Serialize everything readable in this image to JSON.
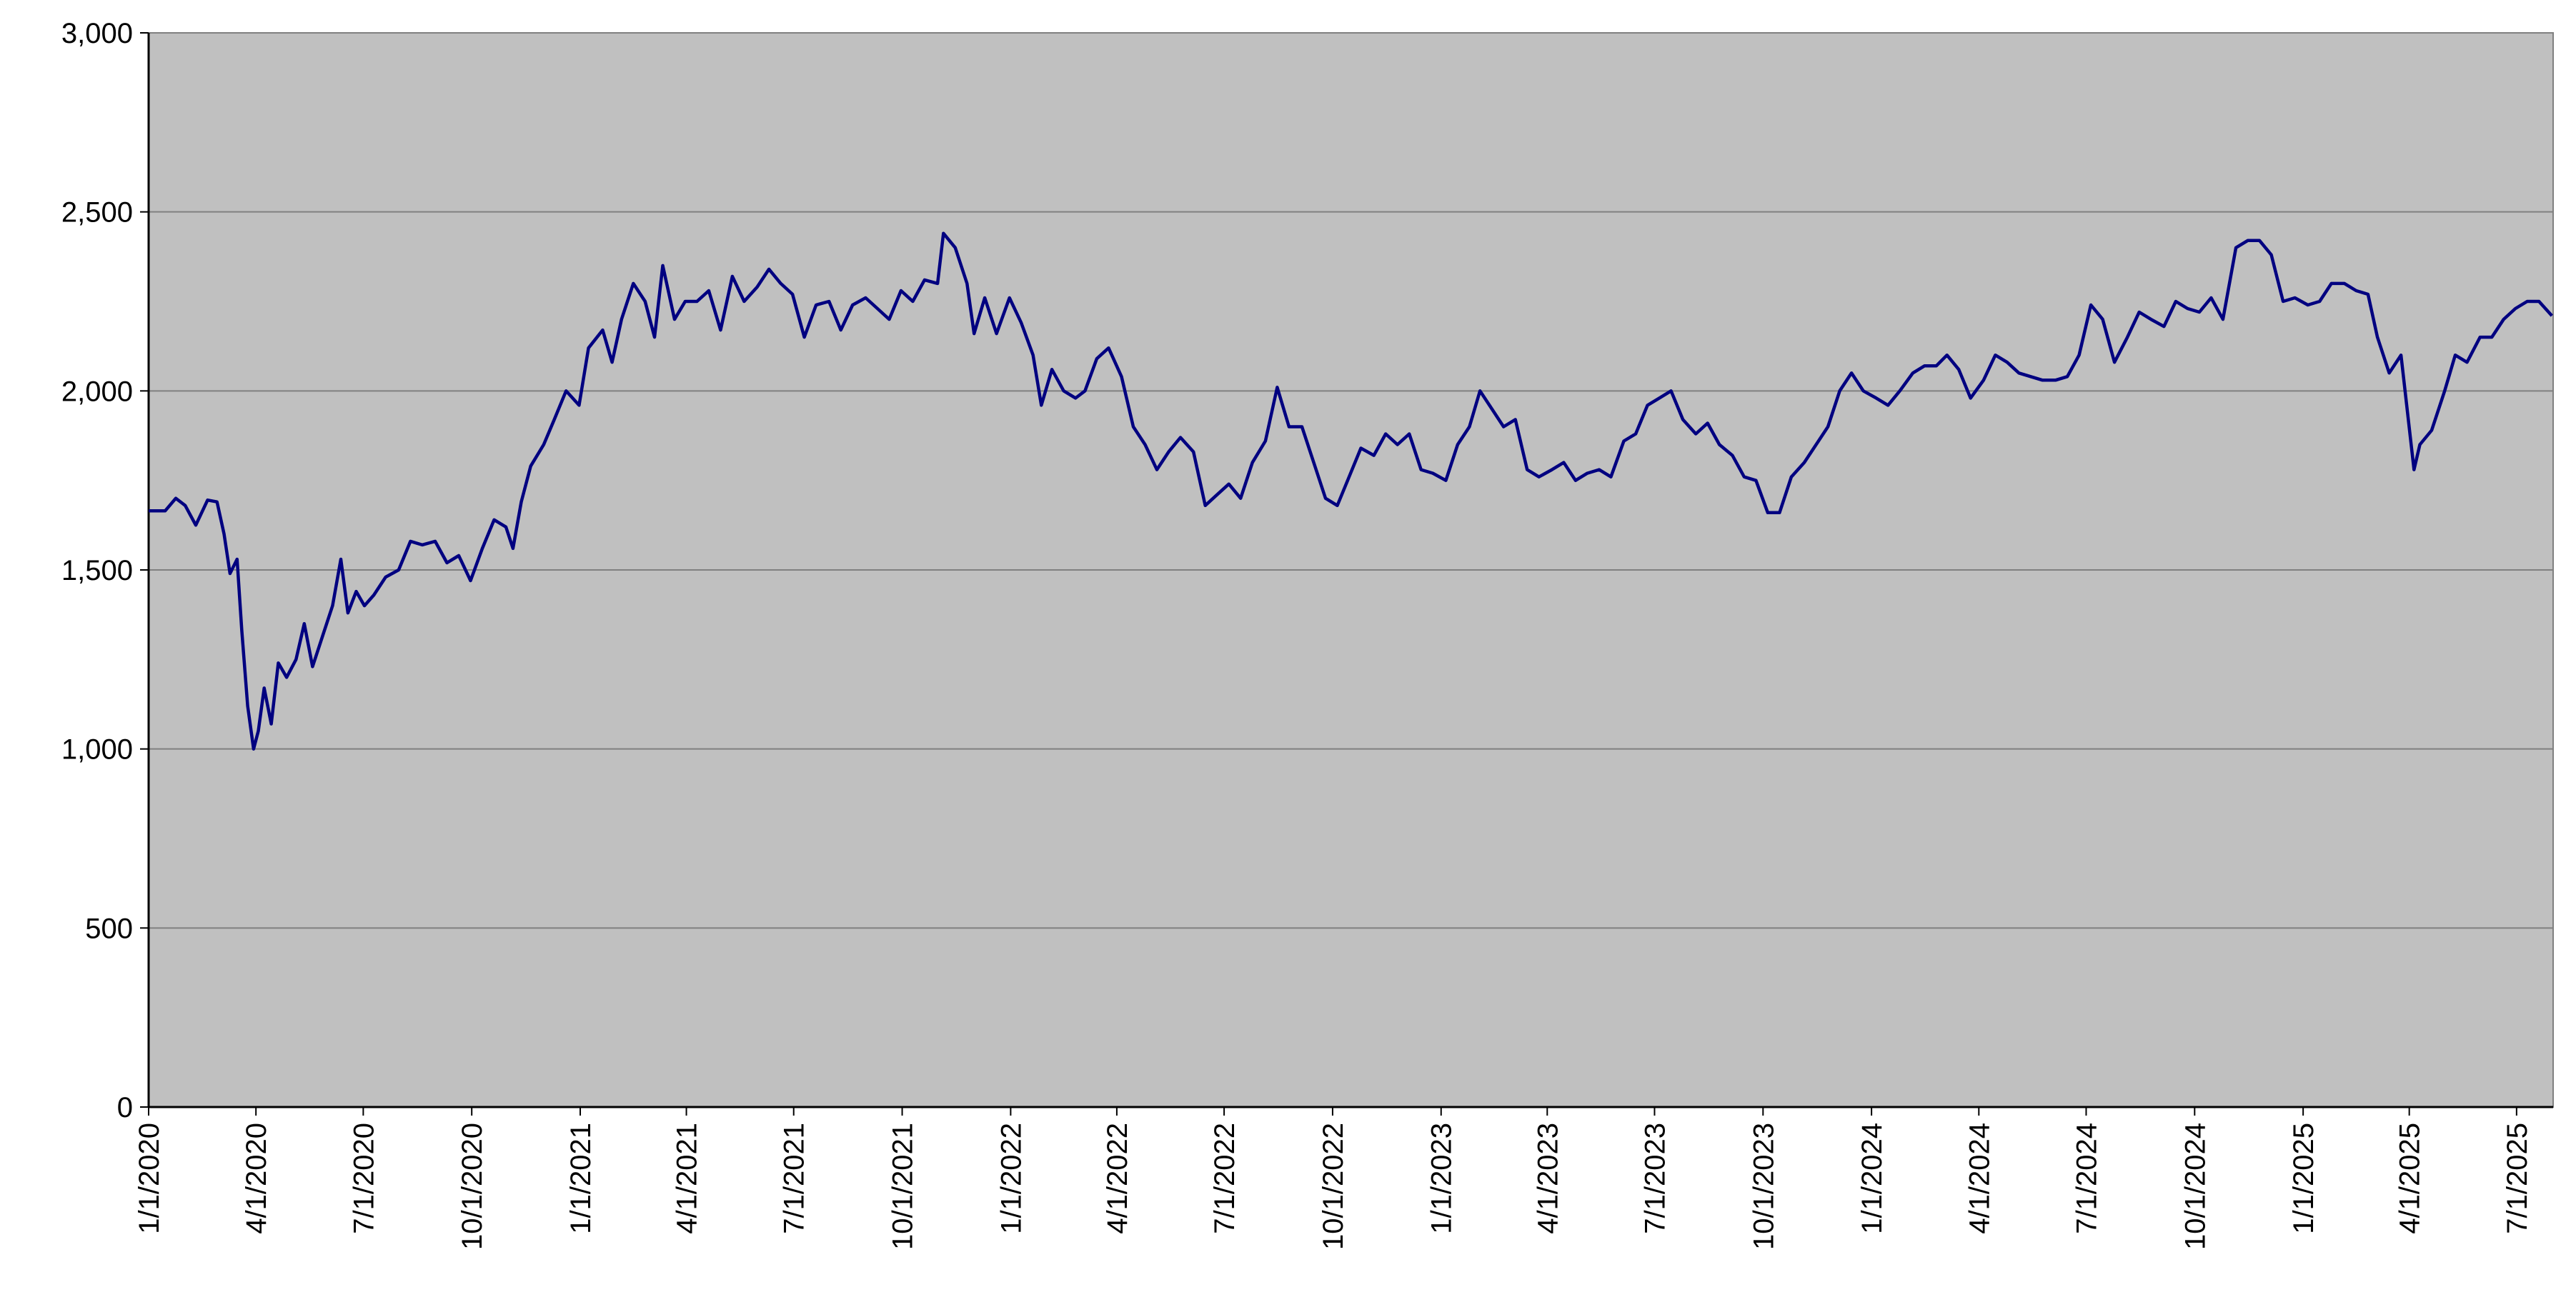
{
  "chart_data": {
    "type": "line",
    "color": "#000080",
    "grid": true,
    "ylim": [
      0,
      3000
    ],
    "yticks": [
      0,
      500,
      {
        "value": 1000,
        "label": "1,000"
      },
      {
        "value": 1500,
        "label": "1,500"
      },
      {
        "value": 2000,
        "label": "2,000"
      },
      {
        "value": 2500,
        "label": "2,500"
      },
      {
        "value": 3000,
        "label": "3,000"
      }
    ],
    "xlim": [
      "1/1/2020",
      "8/1/2025"
    ],
    "xticks": [
      "1/1/2020",
      "4/1/2020",
      "7/1/2020",
      "10/1/2020",
      "1/1/2021",
      "4/1/2021",
      "7/1/2021",
      "10/1/2021",
      "1/1/2022",
      "4/1/2022",
      "7/1/2022",
      "10/1/2022",
      "1/1/2023",
      "4/1/2023",
      "7/1/2023",
      "10/1/2023",
      "1/1/2024",
      "4/1/2024",
      "7/1/2024",
      "10/1/2024",
      "1/1/2025",
      "4/1/2025",
      "7/1/2025"
    ],
    "x": [
      "1/1/2020",
      "1/15/2020",
      "1/24/2020",
      "2/1/2020",
      "2/10/2020",
      "2/20/2020",
      "2/28/2020",
      "3/5/2020",
      "3/10/2020",
      "3/16/2020",
      "3/20/2020",
      "3/25/2020",
      "3/30/2020",
      "4/3/2020",
      "4/8/2020",
      "4/14/2020",
      "4/20/2020",
      "4/27/2020",
      "5/5/2020",
      "5/12/2020",
      "5/19/2020",
      "5/26/2020",
      "6/5/2020",
      "6/12/2020",
      "6/18/2020",
      "6/25/2020",
      "7/2/2020",
      "7/10/2020",
      "7/20/2020",
      "7/31/2020",
      "8/10/2020",
      "8/20/2020",
      "8/31/2020",
      "9/10/2020",
      "9/20/2020",
      "9/30/2020",
      "10/10/2020",
      "10/20/2020",
      "10/30/2020",
      "11/5/2020",
      "11/12/2020",
      "11/20/2020",
      "12/1/2020",
      "12/10/2020",
      "12/20/2020",
      "12/31/2020",
      "1/8/2021",
      "1/20/2021",
      "1/28/2021",
      "2/5/2021",
      "2/15/2021",
      "2/25/2021",
      "3/5/2021",
      "3/12/2021",
      "3/22/2021",
      "3/31/2021",
      "4/10/2021",
      "4/20/2021",
      "4/30/2021",
      "5/10/2021",
      "5/20/2021",
      "5/31/2021",
      "6/10/2021",
      "6/20/2021",
      "6/30/2021",
      "7/10/2021",
      "7/20/2021",
      "7/31/2021",
      "8/10/2021",
      "8/20/2021",
      "8/31/2021",
      "9/10/2021",
      "9/20/2021",
      "9/30/2021",
      "10/10/2021",
      "10/20/2021",
      "10/31/2021",
      "11/5/2021",
      "11/15/2021",
      "11/25/2021",
      "12/1/2021",
      "12/10/2021",
      "12/20/2021",
      "12/31/2021",
      "1/10/2022",
      "1/20/2022",
      "1/27/2022",
      "2/5/2022",
      "2/15/2022",
      "2/25/2022",
      "3/5/2022",
      "3/15/2022",
      "3/25/2022",
      "4/5/2022",
      "4/15/2022",
      "4/25/2022",
      "5/5/2022",
      "5/15/2022",
      "5/25/2022",
      "6/5/2022",
      "6/15/2022",
      "6/25/2022",
      "7/5/2022",
      "7/15/2022",
      "7/25/2022",
      "8/5/2022",
      "8/15/2022",
      "8/25/2022",
      "9/5/2022",
      "9/15/2022",
      "9/25/2022",
      "10/5/2022",
      "10/15/2022",
      "10/25/2022",
      "11/5/2022",
      "11/15/2022",
      "11/25/2022",
      "12/5/2022",
      "12/15/2022",
      "12/25/2022",
      "1/5/2023",
      "1/15/2023",
      "1/25/2023",
      "2/3/2023",
      "2/13/2023",
      "2/23/2023",
      "3/5/2023",
      "3/15/2023",
      "3/25/2023",
      "4/5/2023",
      "4/15/2023",
      "4/25/2023",
      "5/5/2023",
      "5/15/2023",
      "5/25/2023",
      "6/5/2023",
      "6/15/2023",
      "6/25/2023",
      "7/5/2023",
      "7/15/2023",
      "7/25/2023",
      "8/5/2023",
      "8/15/2023",
      "8/25/2023",
      "9/5/2023",
      "9/15/2023",
      "9/25/2023",
      "10/5/2023",
      "10/15/2023",
      "10/25/2023",
      "11/5/2023",
      "11/15/2023",
      "11/25/2023",
      "12/5/2023",
      "12/15/2023",
      "12/25/2023",
      "1/5/2024",
      "1/15/2024",
      "1/25/2024",
      "2/5/2024",
      "2/15/2024",
      "2/25/2024",
      "3/5/2024",
      "3/15/2024",
      "3/25/2024",
      "4/5/2024",
      "4/15/2024",
      "4/25/2024",
      "5/5/2024",
      "5/15/2024",
      "5/25/2024",
      "6/5/2024",
      "6/15/2024",
      "6/25/2024",
      "7/5/2024",
      "7/15/2024",
      "7/25/2024",
      "8/5/2024",
      "8/15/2024",
      "8/25/2024",
      "9/5/2024",
      "9/15/2024",
      "9/25/2024",
      "10/5/2024",
      "10/15/2024",
      "10/25/2024",
      "11/5/2024",
      "11/15/2024",
      "11/25/2024",
      "12/5/2024",
      "12/15/2024",
      "12/25/2024",
      "1/5/2025",
      "1/15/2025",
      "1/25/2025",
      "2/5/2025",
      "2/15/2025",
      "2/25/2025",
      "3/5/2025",
      "3/15/2025",
      "3/25/2025",
      "4/5/2025",
      "4/10/2025",
      "4/20/2025",
      "5/1/2025",
      "5/10/2025",
      "5/20/2025",
      "5/31/2025",
      "6/10/2025",
      "6/20/2025",
      "6/30/2025",
      "7/10/2025",
      "7/20/2025",
      "7/31/2025"
    ],
    "values": [
      1665,
      1665,
      1700,
      1680,
      1625,
      1695,
      1690,
      1600,
      1490,
      1530,
      1330,
      1120,
      1000,
      1050,
      1170,
      1070,
      1240,
      1200,
      1250,
      1350,
      1230,
      1300,
      1400,
      1530,
      1380,
      1440,
      1400,
      1430,
      1480,
      1500,
      1580,
      1570,
      1580,
      1520,
      1540,
      1470,
      1560,
      1640,
      1620,
      1560,
      1690,
      1790,
      1850,
      1920,
      2000,
      1960,
      2120,
      2170,
      2080,
      2200,
      2300,
      2250,
      2150,
      2350,
      2200,
      2250,
      2250,
      2280,
      2170,
      2320,
      2250,
      2290,
      2340,
      2300,
      2270,
      2150,
      2240,
      2250,
      2170,
      2240,
      2260,
      2230,
      2200,
      2280,
      2250,
      2310,
      2300,
      2440,
      2400,
      2300,
      2160,
      2260,
      2160,
      2260,
      2190,
      2100,
      1960,
      2060,
      2000,
      1980,
      2000,
      2090,
      2120,
      2040,
      1900,
      1850,
      1780,
      1830,
      1870,
      1830,
      1680,
      1710,
      1740,
      1700,
      1800,
      1860,
      2010,
      1900,
      1900,
      1800,
      1700,
      1680,
      1760,
      1840,
      1820,
      1880,
      1850,
      1880,
      1780,
      1770,
      1750,
      1850,
      1900,
      2000,
      1950,
      1900,
      1920,
      1780,
      1760,
      1780,
      1800,
      1750,
      1770,
      1780,
      1760,
      1860,
      1880,
      1960,
      1980,
      2000,
      1920,
      1880,
      1910,
      1850,
      1820,
      1760,
      1750,
      1660,
      1660,
      1760,
      1800,
      1850,
      1900,
      2000,
      2050,
      2000,
      1980,
      1960,
      2000,
      2050,
      2070,
      2070,
      2100,
      2060,
      1980,
      2030,
      2100,
      2080,
      2050,
      2040,
      2030,
      2030,
      2040,
      2100,
      2240,
      2200,
      2080,
      2150,
      2220,
      2200,
      2180,
      2250,
      2230,
      2220,
      2260,
      2200,
      2400,
      2420,
      2420,
      2380,
      2250,
      2260,
      2240,
      2250,
      2300,
      2300,
      2280,
      2270,
      2150,
      2050,
      2100,
      1780,
      1850,
      1890,
      2000,
      2100,
      2080,
      2150,
      2150,
      2200,
      2230,
      2250,
      2250,
      2210
    ]
  }
}
